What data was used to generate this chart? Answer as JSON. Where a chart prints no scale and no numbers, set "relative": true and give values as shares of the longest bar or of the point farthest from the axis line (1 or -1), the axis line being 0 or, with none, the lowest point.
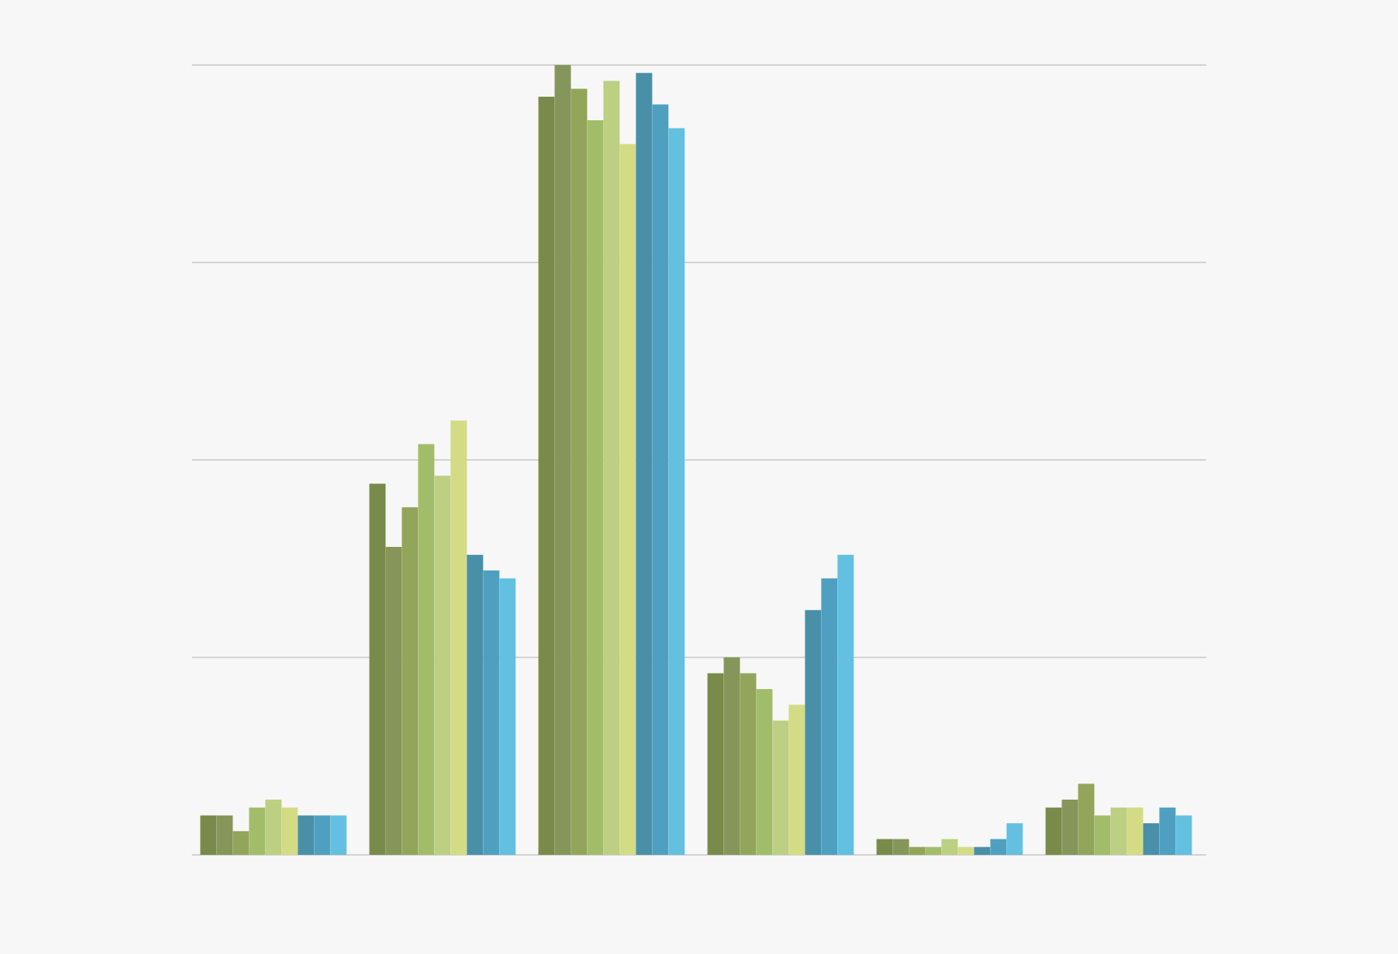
{
  "chart_data": {
    "type": "bar",
    "relative": true,
    "grid": "y",
    "categories": [
      null,
      null,
      null,
      null,
      null,
      null
    ],
    "series": [
      {
        "color": "#7a8a4a",
        "values": [
          0.05,
          0.47,
          0.96,
          0.23,
          0.02,
          0.06
        ]
      },
      {
        "color": "#86965a",
        "values": [
          0.05,
          0.39,
          1,
          0.25,
          0.02,
          0.07
        ]
      },
      {
        "color": "#93a55a",
        "values": [
          0.03,
          0.44,
          0.97,
          0.23,
          0.01,
          0.09
        ]
      },
      {
        "color": "#a2bd6a",
        "values": [
          0.06,
          0.52,
          0.93,
          0.21,
          0.01,
          0.05
        ]
      },
      {
        "color": "#bccf82",
        "values": [
          0.07,
          0.48,
          0.98,
          0.17,
          0.02,
          0.06
        ]
      },
      {
        "color": "#d3dc84",
        "values": [
          0.06,
          0.55,
          0.9,
          0.19,
          0.01,
          0.06
        ]
      },
      {
        "color": "#4a8fa8",
        "values": [
          0.05,
          0.38,
          0.99,
          0.31,
          0.01,
          0.04
        ]
      },
      {
        "color": "#4fa0c0",
        "values": [
          0.05,
          0.36,
          0.95,
          0.35,
          0.02,
          0.06
        ]
      },
      {
        "color": "#63c0e0",
        "values": [
          0.05,
          0.35,
          0.92,
          0.38,
          0.04,
          0.05
        ]
      }
    ]
  }
}
